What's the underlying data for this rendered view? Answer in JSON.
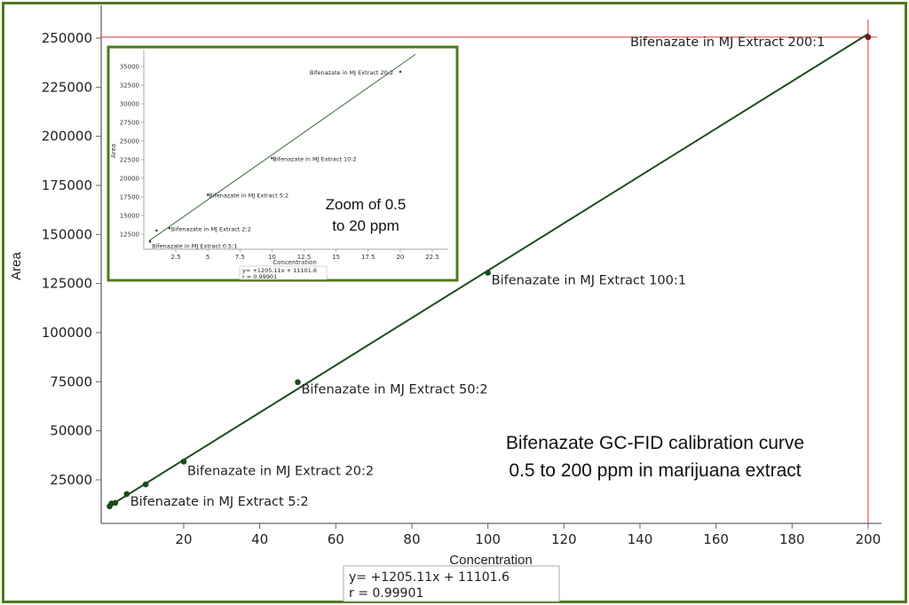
{
  "chart_data": [
    {
      "id": "main",
      "type": "scatter",
      "title": "Bifenazate GC-FID calibration curve",
      "subtitle": "0.5 to 200 ppm in marijuana extract",
      "xlabel": "Concentration",
      "ylabel": "Area",
      "xlim": [
        0,
        205
      ],
      "ylim": [
        0,
        255000
      ],
      "x_ticks": [
        20,
        40,
        60,
        80,
        100,
        120,
        140,
        160,
        180,
        200
      ],
      "y_ticks": [
        25000,
        50000,
        75000,
        100000,
        125000,
        150000,
        175000,
        200000,
        225000,
        250000
      ],
      "grid": false,
      "series": [
        {
          "name": "Bifenazate in MJ Extract",
          "points": [
            {
              "x": 0.5,
              "y": 11500,
              "label": ""
            },
            {
              "x": 1,
              "y": 13000,
              "label": ""
            },
            {
              "x": 2,
              "y": 13300,
              "label": ""
            },
            {
              "x": 5,
              "y": 17800,
              "label": "Bifenazate in MJ Extract 5:2"
            },
            {
              "x": 10,
              "y": 22700,
              "label": ""
            },
            {
              "x": 20,
              "y": 34300,
              "label": "Bifenazate in MJ Extract 20:2"
            },
            {
              "x": 50,
              "y": 74800,
              "label": "Bifenazate in MJ Extract 50:2"
            },
            {
              "x": 100,
              "y": 130500,
              "label": "Bifenazate in MJ Extract 100:1"
            },
            {
              "x": 200,
              "y": 250500,
              "label": "Bifenazate in MJ Extract 200:1"
            }
          ]
        }
      ],
      "fit": {
        "slope": 1205.11,
        "intercept": 11101.6,
        "r": 0.99901
      },
      "equation_text": "y= +1205.11x + 11101.6",
      "r_text": "r = 0.99901",
      "crosshair": {
        "x": 200,
        "y": 250500,
        "color": "#e03030"
      }
    },
    {
      "id": "inset",
      "type": "scatter",
      "title": "Zoom of 0.5 to 20 ppm",
      "xlabel": "Concentration",
      "ylabel": "Area",
      "xlim": [
        0,
        23.5
      ],
      "ylim": [
        11000,
        37000
      ],
      "x_ticks": [
        2.5,
        5,
        7.5,
        10,
        12.5,
        15,
        17.5,
        20,
        22.5
      ],
      "y_ticks": [
        12500,
        15000,
        17500,
        20000,
        22500,
        25000,
        27500,
        30000,
        32500,
        35000
      ],
      "points": [
        {
          "x": 0.5,
          "y": 11500,
          "label": "Bifenazate in MJ Extract 0.5:1"
        },
        {
          "x": 1,
          "y": 13000,
          "label": ""
        },
        {
          "x": 2,
          "y": 13300,
          "label": "Bifenazate in MJ Extract 2:2"
        },
        {
          "x": 5,
          "y": 17800,
          "label": "Bifenazate in MJ Extract 5:2"
        },
        {
          "x": 10,
          "y": 22700,
          "label": "Bifenazate in MJ Extract 10:2"
        },
        {
          "x": 20,
          "y": 34300,
          "label": "Bifenazate in MJ Extract 20:2"
        }
      ],
      "equation_text": "y= +1205.11x + 11101.6",
      "r_text": "r = 0.99901"
    }
  ],
  "labels": {
    "main_ylabel": "Area",
    "main_xlabel": "Concentration",
    "caption_line1": "Bifenazate GC-FID calibration curve",
    "caption_line2": "0.5 to 200 ppm in marijuana extract",
    "zoom_line1": "Zoom of 0.5",
    "zoom_line2": "to 20 ppm",
    "eq_line1": "y= +1205.11x + 11101.6",
    "eq_line2": "r = 0.99901",
    "inset_xlabel": "Concentration",
    "inset_ylabel": "Area"
  },
  "colors": {
    "frame": "#4f7a1e",
    "fit_line": "#1e4d1e",
    "points": "#1a4a1a",
    "crosshair": "#e03030",
    "axis": "#666666"
  }
}
